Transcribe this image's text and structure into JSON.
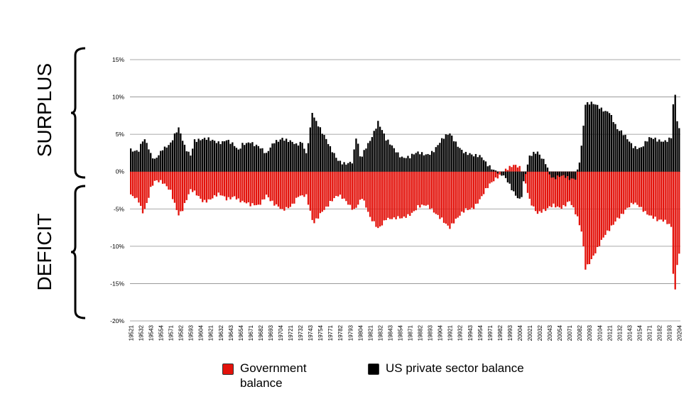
{
  "labels": {
    "surplus": "SURPLUS",
    "deficit": "DEFICIT"
  },
  "legend": {
    "government": "Government\nbalance",
    "private": "US private sector balance"
  },
  "colors": {
    "government": "#e3120b",
    "private": "#000000",
    "grid": "#8c8c8c"
  },
  "chart_data": {
    "type": "bar",
    "ylim": [
      -20,
      15
    ],
    "yticks": [
      15,
      10,
      5,
      0,
      -5,
      -10,
      -15,
      -20
    ],
    "ytick_labels": [
      "15%",
      "10%",
      "5%",
      "0%",
      "-5%",
      "-10%",
      "-15%",
      "-20%"
    ],
    "xtick_labels": [
      "19521",
      "19532",
      "19543",
      "19554",
      "19571",
      "19582",
      "19593",
      "19604",
      "19621",
      "19632",
      "19643",
      "19654",
      "19671",
      "19682",
      "19693",
      "19704",
      "19721",
      "19732",
      "19743",
      "19754",
      "19771",
      "19782",
      "19793",
      "19804",
      "19821",
      "19832",
      "19843",
      "19854",
      "19871",
      "19882",
      "19893",
      "19904",
      "19921",
      "19932",
      "19943",
      "19954",
      "19971",
      "19982",
      "19993",
      "20004",
      "20021",
      "20032",
      "20043",
      "20054",
      "20071",
      "20082",
      "20093",
      "20104",
      "20121",
      "20132",
      "20143",
      "20154",
      "20171",
      "20182",
      "20193",
      "20204"
    ],
    "start_year": 1952,
    "end_year": 2020.75,
    "series": [
      {
        "name": "US private sector balance",
        "color": "#000000",
        "anchors": [
          [
            1952,
            3.2
          ],
          [
            1953,
            3.0
          ],
          [
            1953.6,
            4.3
          ],
          [
            1954,
            3.5
          ],
          [
            1954.5,
            2.0
          ],
          [
            1955,
            1.5
          ],
          [
            1956,
            3.4
          ],
          [
            1957,
            3.8
          ],
          [
            1958,
            5.5
          ],
          [
            1958.8,
            3.2
          ],
          [
            1959.5,
            2.5
          ],
          [
            1960,
            4.5
          ],
          [
            1961,
            4.2
          ],
          [
            1962,
            4.0
          ],
          [
            1963,
            4.1
          ],
          [
            1964,
            4.5
          ],
          [
            1964.8,
            3.5
          ],
          [
            1965.5,
            2.5
          ],
          [
            1966,
            3.5
          ],
          [
            1967,
            4.3
          ],
          [
            1968,
            3.5
          ],
          [
            1969,
            2.0
          ],
          [
            1970,
            4.0
          ],
          [
            1971,
            4.8
          ],
          [
            1972,
            4.0
          ],
          [
            1972.8,
            3.2
          ],
          [
            1973.5,
            3.8
          ],
          [
            1974,
            2.5
          ],
          [
            1974.7,
            7.5
          ],
          [
            1974.85,
            10.0
          ],
          [
            1975,
            7.5
          ],
          [
            1976,
            5.0
          ],
          [
            1977,
            3.0
          ],
          [
            1978,
            1.8
          ],
          [
            1979,
            1.2
          ],
          [
            1979.8,
            1.0
          ],
          [
            1980.3,
            4.6
          ],
          [
            1980.8,
            1.5
          ],
          [
            1981.5,
            3.5
          ],
          [
            1982,
            4.5
          ],
          [
            1983,
            6.6
          ],
          [
            1984,
            4.0
          ],
          [
            1985,
            3.2
          ],
          [
            1986,
            2.2
          ],
          [
            1987,
            1.8
          ],
          [
            1988,
            2.3
          ],
          [
            1989,
            2.5
          ],
          [
            1990,
            3.0
          ],
          [
            1991,
            4.0
          ],
          [
            1992,
            5.0
          ],
          [
            1993,
            3.8
          ],
          [
            1994,
            2.5
          ],
          [
            1995,
            1.8
          ],
          [
            1996,
            2.0
          ],
          [
            1997,
            1.0
          ],
          [
            1998,
            -0.2
          ],
          [
            1999,
            -1.2
          ],
          [
            2000,
            -2.6
          ],
          [
            2000.9,
            -3.6
          ],
          [
            2001.3,
            -1.0
          ],
          [
            2002,
            1.8
          ],
          [
            2003,
            2.4
          ],
          [
            2004,
            1.5
          ],
          [
            2004.6,
            -0.3
          ],
          [
            2005,
            -0.8
          ],
          [
            2006,
            -0.9
          ],
          [
            2007,
            -1.0
          ],
          [
            2007.8,
            -0.6
          ],
          [
            2008.4,
            2.5
          ],
          [
            2009,
            9.0
          ],
          [
            2010,
            8.8
          ],
          [
            2011,
            8.5
          ],
          [
            2012,
            8.3
          ],
          [
            2013,
            5.5
          ],
          [
            2014,
            4.5
          ],
          [
            2015,
            3.6
          ],
          [
            2016,
            3.4
          ],
          [
            2017,
            4.2
          ],
          [
            2018,
            4.1
          ],
          [
            2019,
            4.4
          ],
          [
            2019.8,
            4.8
          ],
          [
            2020.15,
            12.2
          ],
          [
            2020.35,
            8.0
          ],
          [
            2020.6,
            5.8
          ],
          [
            2020.75,
            5.3
          ]
        ]
      },
      {
        "name": "Government balance",
        "color": "#e3120b",
        "anchors": [
          [
            1952,
            -3.5
          ],
          [
            1953,
            -4.0
          ],
          [
            1953.5,
            -5.3
          ],
          [
            1954,
            -4.0
          ],
          [
            1954.5,
            -2.0
          ],
          [
            1955,
            -1.3
          ],
          [
            1956,
            -1.8
          ],
          [
            1957,
            -2.5
          ],
          [
            1958,
            -5.5
          ],
          [
            1958.5,
            -5.0
          ],
          [
            1959.5,
            -2.8
          ],
          [
            1960,
            -3.0
          ],
          [
            1961,
            -3.7
          ],
          [
            1962,
            -3.5
          ],
          [
            1963,
            -3.3
          ],
          [
            1964,
            -3.8
          ],
          [
            1965,
            -3.0
          ],
          [
            1966,
            -4.0
          ],
          [
            1967,
            -4.8
          ],
          [
            1968,
            -4.5
          ],
          [
            1969,
            -2.8
          ],
          [
            1970,
            -4.5
          ],
          [
            1971,
            -5.5
          ],
          [
            1972,
            -4.5
          ],
          [
            1973,
            -3.0
          ],
          [
            1974,
            -3.5
          ],
          [
            1974.8,
            -7.0
          ],
          [
            1974.85,
            -9.6
          ],
          [
            1975,
            -7.0
          ],
          [
            1976,
            -5.0
          ],
          [
            1977,
            -4.0
          ],
          [
            1978,
            -3.5
          ],
          [
            1979,
            -4.0
          ],
          [
            1980,
            -4.8
          ],
          [
            1981,
            -3.5
          ],
          [
            1982,
            -6.5
          ],
          [
            1983,
            -7.5
          ],
          [
            1984,
            -6.0
          ],
          [
            1985,
            -6.5
          ],
          [
            1986,
            -6.5
          ],
          [
            1987,
            -5.5
          ],
          [
            1988,
            -4.5
          ],
          [
            1989,
            -4.8
          ],
          [
            1990,
            -5.5
          ],
          [
            1991,
            -6.0
          ],
          [
            1992,
            -7.5
          ],
          [
            1993,
            -6.5
          ],
          [
            1994,
            -5.0
          ],
          [
            1995,
            -4.5
          ],
          [
            1996,
            -3.5
          ],
          [
            1997,
            -2.0
          ],
          [
            1998,
            -0.5
          ],
          [
            1999,
            0.5
          ],
          [
            2000,
            0.6
          ],
          [
            2000.9,
            0.2
          ],
          [
            2001.5,
            -1.5
          ],
          [
            2002,
            -3.5
          ],
          [
            2003,
            -5.5
          ],
          [
            2004,
            -5.5
          ],
          [
            2005,
            -4.5
          ],
          [
            2006,
            -4.5
          ],
          [
            2007,
            -4.0
          ],
          [
            2008,
            -6.5
          ],
          [
            2008.6,
            -8.5
          ],
          [
            2009,
            -12.8
          ],
          [
            2010,
            -11.0
          ],
          [
            2011,
            -9.5
          ],
          [
            2012,
            -8.0
          ],
          [
            2013,
            -6.0
          ],
          [
            2014,
            -5.0
          ],
          [
            2015,
            -4.5
          ],
          [
            2016,
            -5.0
          ],
          [
            2017,
            -5.5
          ],
          [
            2017.7,
            -6.0
          ],
          [
            2018,
            -6.5
          ],
          [
            2019,
            -7.0
          ],
          [
            2019.8,
            -7.5
          ],
          [
            2020.15,
            -18.0
          ],
          [
            2020.35,
            -13.5
          ],
          [
            2020.6,
            -11.0
          ],
          [
            2020.75,
            -10.8
          ]
        ]
      }
    ]
  }
}
